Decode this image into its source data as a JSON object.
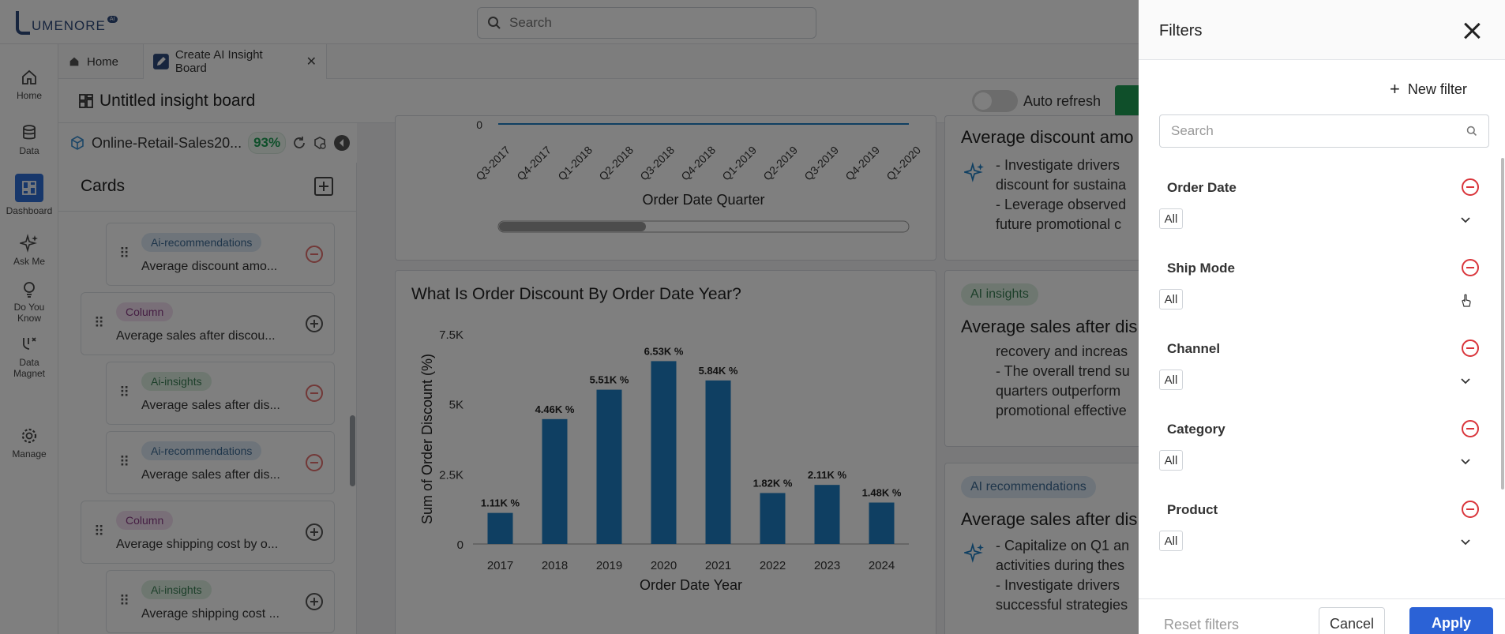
{
  "app": {
    "logo_text": "UMENORE",
    "logo_badge": "AI"
  },
  "top_search": {
    "placeholder": "Search"
  },
  "rail": [
    {
      "label": "Home",
      "icon": "home-icon"
    },
    {
      "label": "Data",
      "icon": "database-icon"
    },
    {
      "label": "Dashboard",
      "icon": "dashboard-icon"
    },
    {
      "label": "Ask Me",
      "icon": "sparkle-icon"
    },
    {
      "label": "Do You",
      "label2": "Know",
      "icon": "bulb-icon"
    },
    {
      "label": "Data",
      "label2": "Magnet",
      "icon": "magnet-icon"
    },
    {
      "label": "Manage",
      "icon": "gear-icon"
    }
  ],
  "tabs": [
    {
      "label": "Home"
    },
    {
      "label": "Create AI Insight Board"
    }
  ],
  "board": {
    "title": "Untitled insight board",
    "auto_refresh_label": "Auto refresh",
    "dataset_name": "Online-Retail-Sales20...",
    "dataset_pct": "93%"
  },
  "cards_panel": {
    "title": "Cards",
    "items": [
      {
        "pill": "Ai-recommendations",
        "title": "Average discount amo..."
      },
      {
        "pill": "Column",
        "title": "Average sales after discou..."
      },
      {
        "pill": "Ai-insights",
        "title": "Average sales after dis..."
      },
      {
        "pill": "Ai-recommendations",
        "title": "Average sales after dis..."
      },
      {
        "pill": "Column",
        "title": "Average shipping cost by o..."
      },
      {
        "pill": "Ai-insights",
        "title": "Average shipping cost ..."
      }
    ]
  },
  "top_chart": {
    "ytick": "0",
    "xlabel": "Order Date Quarter",
    "categories": [
      "Q3-2017",
      "Q4-2017",
      "Q1-2018",
      "Q2-2018",
      "Q3-2018",
      "Q4-2018",
      "Q1-2019",
      "Q2-2019",
      "Q3-2019",
      "Q4-2019",
      "Q1-2020"
    ]
  },
  "chart_data": {
    "type": "bar",
    "title": "What Is Order Discount By Order Date Year?",
    "xlabel": "Order Date Year",
    "ylabel": "Sum of Order Discount (%)",
    "categories": [
      "2017",
      "2018",
      "2019",
      "2020",
      "2021",
      "2022",
      "2023",
      "2024"
    ],
    "values": [
      1110,
      4460,
      5510,
      6530,
      5840,
      1820,
      2110,
      1480
    ],
    "data_labels": [
      "1.11K %",
      "4.46K %",
      "5.51K %",
      "6.53K %",
      "5.84K %",
      "1.82K %",
      "2.11K %",
      "1.48K %"
    ],
    "yticks": [
      0,
      2500,
      5000,
      7500
    ],
    "ytick_labels": [
      "0",
      "2.5K",
      "5K",
      "7.5K"
    ],
    "ylim": [
      0,
      7500
    ],
    "grid": false,
    "bar_color": "#1f7fc4"
  },
  "insights": [
    {
      "pill": "",
      "title": "Average discount amo",
      "lines": [
        "- Investigate drivers",
        "discount for sustaina",
        "- Leverage observed",
        "future promotional c"
      ]
    },
    {
      "pill": "AI insights",
      "title": "Average sales after dis",
      "lines": [
        "recovery and increas",
        "- The overall trend su",
        "quarters outperform",
        "promotional effective"
      ]
    },
    {
      "pill": "AI recommendations",
      "title": "Average sales after dis",
      "lines": [
        "- Capitalize on Q1 an",
        "activities during thes",
        "- Investigate drivers",
        "successful strategies"
      ]
    }
  ],
  "filters": {
    "title": "Filters",
    "new_filter_label": "New filter",
    "search_placeholder": "Search",
    "groups": [
      {
        "label": "Order Date",
        "value": "All"
      },
      {
        "label": "Ship Mode",
        "value": "All"
      },
      {
        "label": "Channel",
        "value": "All"
      },
      {
        "label": "Category",
        "value": "All"
      },
      {
        "label": "Product",
        "value": "All"
      }
    ],
    "reset_label": "Reset filters",
    "cancel_label": "Cancel",
    "apply_label": "Apply"
  },
  "colors": {
    "accent": "#2b62d6",
    "remove": "#d9343a",
    "green": "#1e9e55"
  }
}
